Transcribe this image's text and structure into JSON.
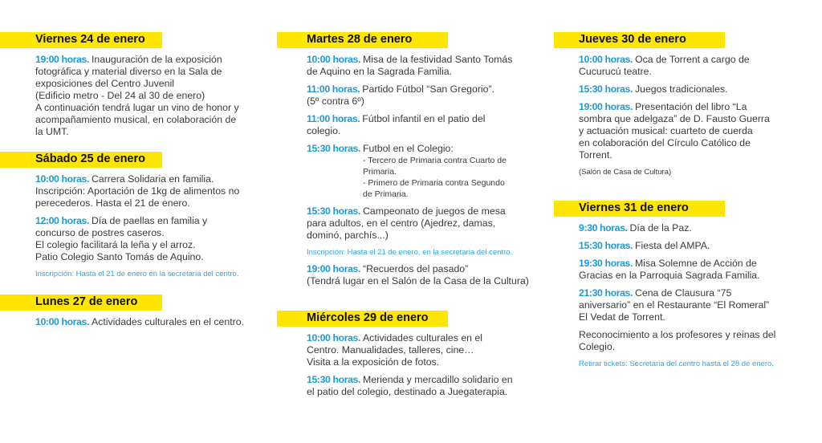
{
  "accent_color": "#ffe600",
  "time_color": "#1d9ad6",
  "sections": [
    {
      "title": "Viernes 24 de enero",
      "entries": [
        {
          "time": "19:00 horas.",
          "lines": [
            "Inauguración de la exposición",
            "fotográfica y material diverso en la Sala de",
            "exposiciones del Centro Juvenil",
            "(Edificio metro - Del 24 al 30 de enero)",
            "A continuación tendrá lugar un vino de honor y",
            "acompañamiento musical, en colaboración de",
            "la UMT."
          ]
        }
      ]
    },
    {
      "title": "Sábado 25 de enero",
      "entries": [
        {
          "time": "10:00 horas.",
          "lines": [
            "Carrera Solidaria en familia.",
            "Inscripción: Aportación de 1kg de alimentos no",
            "perecederos. Hasta el 21 de enero."
          ]
        },
        {
          "time": "12:00 horas.",
          "lines": [
            "Día de paellas en familia y",
            "concurso de postres caseros.",
            "El colegio facilitará la leña y el arroz.",
            "Patio Colegio Santo Tomás de Aquino."
          ]
        },
        {
          "style": "note",
          "lines": [
            "Inscripción: Hasta el  21 de enero en la secretaria del centro."
          ]
        }
      ]
    },
    {
      "title": "Lunes 27 de enero",
      "entries": [
        {
          "time": "10:00 horas.",
          "lines": [
            "Actividades culturales en el centro."
          ]
        }
      ]
    },
    {
      "title": "Martes 28 de enero",
      "entries": [
        {
          "time": "10:00 horas.",
          "lines": [
            "Misa de la festividad Santo Tomás",
            "de Aquino en la Sagrada Familia."
          ]
        },
        {
          "time": "11:00 horas.",
          "lines": [
            "Partido Fútbol “San Gregorio”.",
            "(5º contra 6º)"
          ]
        },
        {
          "time": "11:00 horas.",
          "lines": [
            "Fútbol infantil en el patio del",
            "colegio."
          ]
        },
        {
          "time": "15:30 horas.",
          "lines": [
            "Futbol en el Colegio:"
          ],
          "sub": [
            "- Tercero de Primaria contra Cuarto de",
            "Primaria.",
            "- Primero de Primaria contra Segundo",
            "de Primaria."
          ]
        },
        {
          "time": "15:30 horas.",
          "lines": [
            "Campeonato de juegos de mesa",
            "para adultos, en el centro  (Ajedrez, damas,",
            "dominó, parchís...)"
          ]
        },
        {
          "style": "note",
          "lines": [
            "Inscripción: Hasta el 21 de enero, en la secretaria del centro."
          ]
        },
        {
          "time": "19:00 horas.",
          "lines": [
            "“Recuerdos del pasado”",
            "(Tendrá lugar en el Salón de la Casa de la Cultura)"
          ]
        }
      ]
    },
    {
      "title": "Miércoles 29 de enero",
      "entries": [
        {
          "time": "10:00 horas.",
          "lines": [
            "Actividades culturales en el",
            "Centro. Manualidades, talleres, cine…",
            "Visita a la exposición de fotos."
          ]
        },
        {
          "time": "15:30 horas.",
          "lines": [
            "Merienda y mercadillo solidario en",
            "el patio del colegio, destinado a Juegaterapia."
          ]
        }
      ]
    },
    {
      "title": "Jueves 30 de enero",
      "entries": [
        {
          "time": "10:00 horas.",
          "lines": [
            "Oca de Torrent a cargo de",
            "Cucurucú teatre."
          ]
        },
        {
          "time": "15:30 horas.",
          "lines": [
            "Juegos tradicionales."
          ]
        },
        {
          "time": "19:00 horas.",
          "lines": [
            "Presentación del libro “La",
            "sombra que adelgaza” de D. Fausto Guerra",
            "y actuación musical: cuarteto de cuerda",
            "en colaboración del Círculo Católico de",
            "Torrent."
          ]
        },
        {
          "style": "small",
          "lines": [
            "(Salón de Casa de Cultura)"
          ]
        }
      ]
    },
    {
      "title": "Viernes 31 de enero",
      "entries": [
        {
          "time": "9:30 horas.",
          "lines": [
            "Día de la Paz."
          ]
        },
        {
          "time": "15:30 horas.",
          "lines": [
            "Fiesta del AMPA."
          ]
        },
        {
          "time": "19:30 horas.",
          "lines": [
            "Misa Solemne de Acción de",
            "Gracias en la Parroquia Sagrada Familia."
          ]
        },
        {
          "time": "21:30 horas.",
          "lines": [
            "Cena de Clausura “75",
            "aniversario” en el Restaurante “El Romeral”",
            "El Vedat de Torrent."
          ]
        },
        {
          "lines": [
            "Reconocimiento a los profesores y reinas del",
            "Colegio."
          ]
        },
        {
          "style": "note",
          "lines": [
            "Retirar tickets: Secretaria del centro hasta el 28 de enero."
          ]
        }
      ]
    }
  ]
}
